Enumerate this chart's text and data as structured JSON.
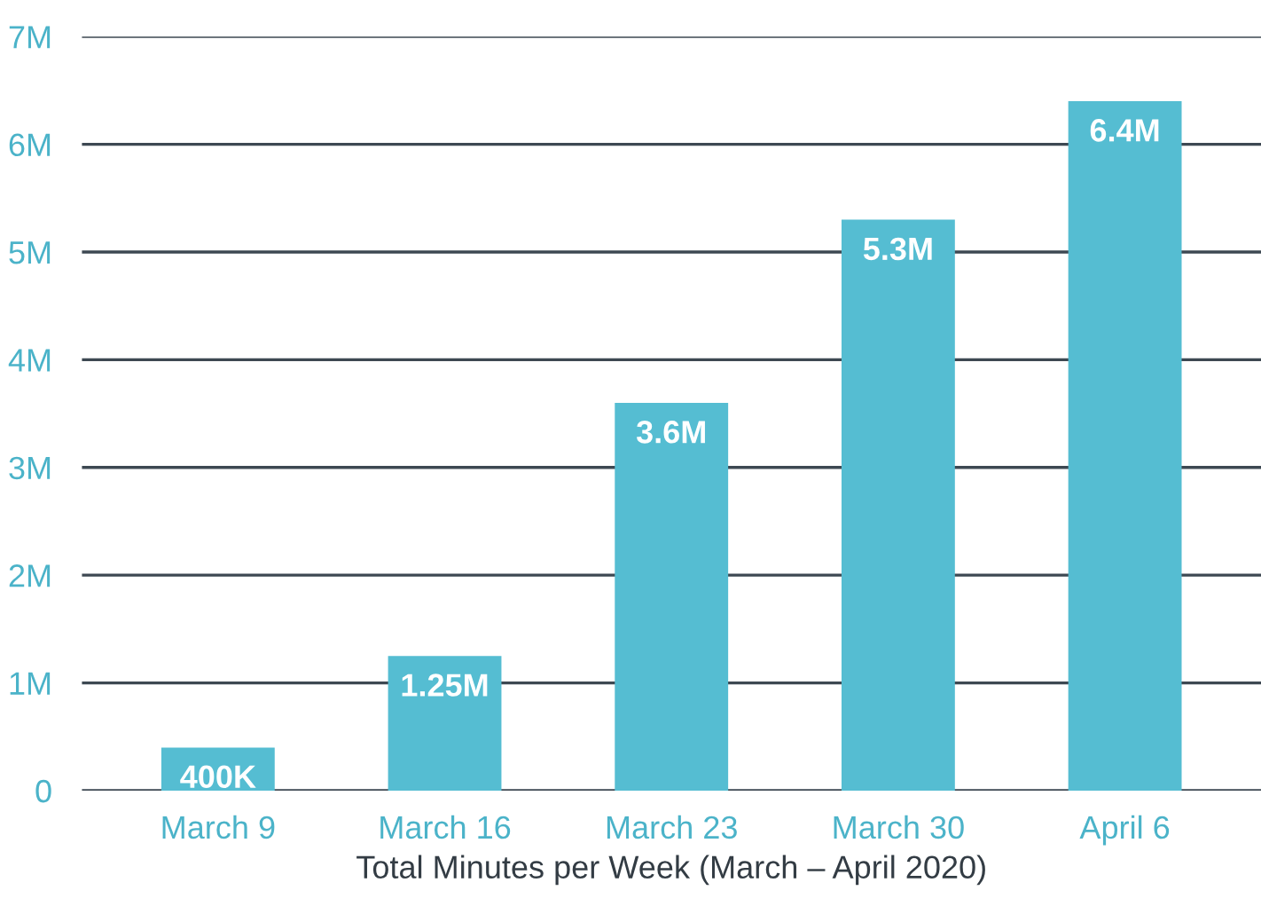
{
  "chart_data": {
    "type": "bar",
    "xlabel": "Total Minutes per Week (March – April 2020)",
    "categories": [
      "March 9",
      "March 16",
      "March 23",
      "March 30",
      "April 6"
    ],
    "values": [
      400000,
      1250000,
      3600000,
      5300000,
      6400000
    ],
    "value_labels": [
      "400K",
      "1.25M",
      "3.6M",
      "5.3M",
      "6.4M"
    ],
    "color": "#55bdd2",
    "ylim": [
      0,
      7000000
    ],
    "yticks": [
      0,
      {
        "value": 1000000,
        "label": "1M"
      },
      {
        "value": 2000000,
        "label": "2M"
      },
      {
        "value": 3000000,
        "label": "3M"
      },
      {
        "value": 4000000,
        "label": "4M"
      },
      {
        "value": 5000000,
        "label": "5M"
      },
      {
        "value": 6000000,
        "label": "6M"
      },
      {
        "value": 7000000,
        "label": "7M"
      }
    ],
    "grid": "y"
  }
}
